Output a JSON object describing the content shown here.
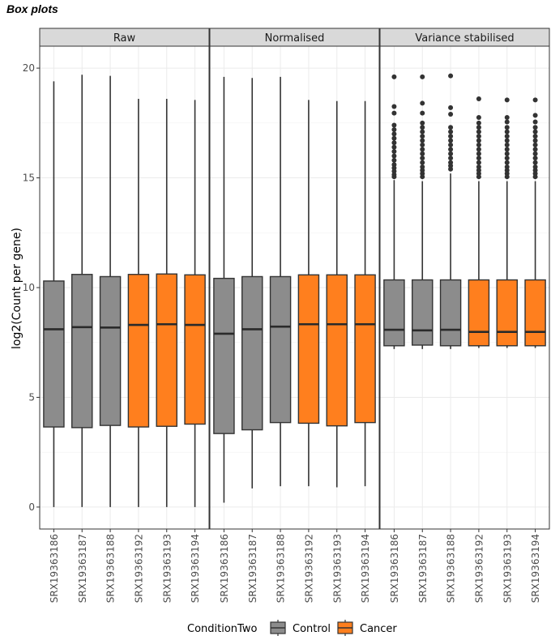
{
  "chart_data": {
    "type": "box",
    "title": "Box plots",
    "ylabel": "log2(Count per gene)",
    "xlabel": "",
    "ylim": [
      -1,
      21
    ],
    "yticks": [
      0,
      5,
      10,
      15,
      20
    ],
    "grid": true,
    "categories": [
      "SRX19363186",
      "SRX19363187",
      "SRX19363188",
      "SRX19363192",
      "SRX19363193",
      "SRX19363194"
    ],
    "conditions": [
      "Control",
      "Control",
      "Control",
      "Cancer",
      "Cancer",
      "Cancer"
    ],
    "legend": {
      "title": "ConditionTwo",
      "position": "bottom",
      "entries": [
        {
          "label": "Control",
          "color": "#8c8c8c"
        },
        {
          "label": "Cancer",
          "color": "#ff7f1e"
        }
      ]
    },
    "panels": [
      {
        "name": "Raw",
        "boxes": [
          {
            "min": 0,
            "q1": 3.65,
            "median": 8.1,
            "q3": 10.3,
            "max": 19.4
          },
          {
            "min": 0,
            "q1": 3.62,
            "median": 8.2,
            "q3": 10.6,
            "max": 19.7
          },
          {
            "min": 0,
            "q1": 3.72,
            "median": 8.18,
            "q3": 10.5,
            "max": 19.65
          },
          {
            "min": 0,
            "q1": 3.65,
            "median": 8.3,
            "q3": 10.6,
            "max": 18.6
          },
          {
            "min": 0,
            "q1": 3.68,
            "median": 8.33,
            "q3": 10.62,
            "max": 18.6
          },
          {
            "min": 0,
            "q1": 3.78,
            "median": 8.3,
            "q3": 10.58,
            "max": 18.55
          }
        ]
      },
      {
        "name": "Normalised",
        "boxes": [
          {
            "min": 0.2,
            "q1": 3.35,
            "median": 7.9,
            "q3": 10.42,
            "max": 19.6
          },
          {
            "min": 0.85,
            "q1": 3.52,
            "median": 8.1,
            "q3": 10.5,
            "max": 19.55
          },
          {
            "min": 0.95,
            "q1": 3.85,
            "median": 8.22,
            "q3": 10.5,
            "max": 19.6
          },
          {
            "min": 0.95,
            "q1": 3.82,
            "median": 8.33,
            "q3": 10.58,
            "max": 18.55
          },
          {
            "min": 0.9,
            "q1": 3.7,
            "median": 8.33,
            "q3": 10.58,
            "max": 18.5
          },
          {
            "min": 0.95,
            "q1": 3.85,
            "median": 8.33,
            "q3": 10.58,
            "max": 18.5
          }
        ]
      },
      {
        "name": "Variance stabilised",
        "boxes": [
          {
            "min": 7.2,
            "q1": 7.35,
            "median": 8.08,
            "q3": 10.35,
            "max": 14.9,
            "outliers": [
              19.6,
              18.25,
              17.95,
              17.4,
              17.2,
              17.0,
              16.8,
              16.6,
              16.4,
              16.2,
              16.0,
              15.8,
              15.6,
              15.45,
              15.3,
              15.15,
              15.05
            ]
          },
          {
            "min": 7.2,
            "q1": 7.38,
            "median": 8.05,
            "q3": 10.35,
            "max": 14.85,
            "outliers": [
              19.6,
              18.4,
              17.95,
              17.5,
              17.3,
              17.1,
              16.9,
              16.7,
              16.5,
              16.3,
              16.1,
              15.9,
              15.7,
              15.5,
              15.35,
              15.2,
              15.05
            ]
          },
          {
            "min": 7.2,
            "q1": 7.35,
            "median": 8.08,
            "q3": 10.35,
            "max": 15.2,
            "outliers": [
              19.65,
              18.2,
              17.9,
              17.3,
              17.1,
              16.9,
              16.7,
              16.5,
              16.3,
              16.1,
              15.9,
              15.7,
              15.55,
              15.4
            ]
          },
          {
            "min": 7.25,
            "q1": 7.35,
            "median": 7.98,
            "q3": 10.35,
            "max": 14.85,
            "outliers": [
              18.6,
              17.75,
              17.5,
              17.3,
              17.1,
              16.9,
              16.7,
              16.5,
              16.3,
              16.1,
              15.9,
              15.7,
              15.5,
              15.35,
              15.2,
              15.05
            ]
          },
          {
            "min": 7.25,
            "q1": 7.35,
            "median": 7.98,
            "q3": 10.35,
            "max": 14.85,
            "outliers": [
              18.55,
              17.75,
              17.55,
              17.3,
              17.1,
              16.9,
              16.7,
              16.5,
              16.3,
              16.1,
              15.9,
              15.7,
              15.5,
              15.35,
              15.2,
              15.05
            ]
          },
          {
            "min": 7.25,
            "q1": 7.35,
            "median": 7.98,
            "q3": 10.35,
            "max": 14.85,
            "outliers": [
              18.55,
              17.85,
              17.55,
              17.3,
              17.1,
              16.9,
              16.7,
              16.5,
              16.3,
              16.1,
              15.9,
              15.7,
              15.5,
              15.35,
              15.2,
              15.05
            ]
          }
        ]
      }
    ]
  }
}
